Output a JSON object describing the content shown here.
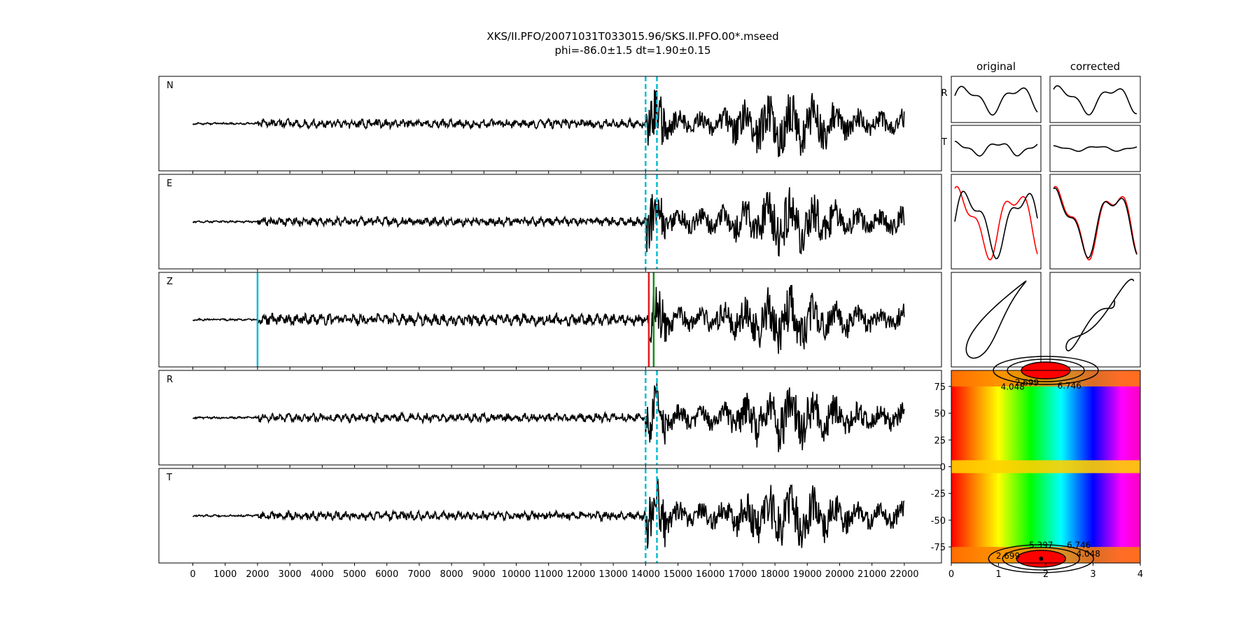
{
  "title": {
    "line1": "XKS/II.PFO/20071031T033015.96/SKS.II.PFO.00*.mseed",
    "line2": "phi=-86.0±1.5 dt=1.90±0.15"
  },
  "colors": {
    "trace": "#000000",
    "window": "#00bcd4",
    "pick_red": "#e41a1c",
    "pick_green": "#1a8c1a",
    "corrected_red": "#ff0000"
  },
  "chart_data": [
    {
      "type": "line",
      "name": "seismogram-panels",
      "x_ticks": [
        0,
        1000,
        2000,
        3000,
        4000,
        5000,
        6000,
        7000,
        8000,
        9000,
        10000,
        11000,
        12000,
        13000,
        14000,
        15000,
        16000,
        17000,
        18000,
        19000,
        20000,
        21000,
        22000
      ],
      "xlim": [
        -1050,
        23150
      ],
      "data_range": [
        0,
        22000
      ],
      "window_lines": [
        14000,
        14350
      ],
      "z_picks": {
        "cyan": 2000,
        "red": 14100,
        "green": 14250
      },
      "panels": [
        {
          "label": "N",
          "onset": 14000
        },
        {
          "label": "E",
          "onset": 14000
        },
        {
          "label": "Z",
          "onset": 14100
        },
        {
          "label": "R",
          "onset": 14000
        },
        {
          "label": "T",
          "onset": 14000
        }
      ]
    },
    {
      "type": "line",
      "name": "particle-motion-panels",
      "column_titles": [
        "original",
        "corrected"
      ],
      "row_labels": [
        "R",
        "T"
      ]
    },
    {
      "type": "heatmap",
      "name": "error-surface",
      "x_ticks": [
        0,
        1,
        2,
        3,
        4
      ],
      "y_ticks": [
        75,
        50,
        25,
        0,
        -25,
        -50,
        -75
      ],
      "xlim": [
        0,
        4
      ],
      "ylim": [
        -90,
        90
      ],
      "minimum": {
        "dt": 1.9,
        "phi": -86.0
      },
      "contour_labels": [
        "2.699",
        "4.048",
        "6.746",
        "5.397",
        "6.746",
        "2.699",
        "4.048"
      ]
    }
  ]
}
